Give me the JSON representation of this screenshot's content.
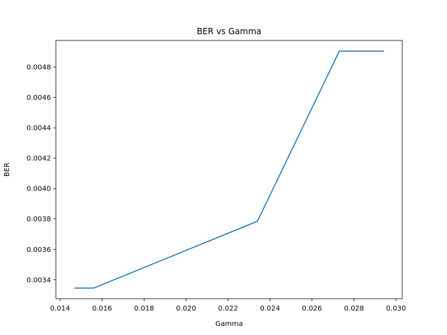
{
  "chart_data": {
    "type": "line",
    "title": "BER vs Gamma",
    "xlabel": "Gamma",
    "ylabel": "BER",
    "xlim": [
      0.0138,
      0.0303
    ],
    "ylim": [
      0.003275,
      0.004975
    ],
    "x_ticks": [
      "0.014",
      "0.016",
      "0.018",
      "0.020",
      "0.022",
      "0.024",
      "0.026",
      "0.028",
      "0.030"
    ],
    "y_ticks": [
      "0.0034",
      "0.0036",
      "0.0038",
      "0.0040",
      "0.0042",
      "0.0044",
      "0.0046",
      "0.0048"
    ],
    "grid": false,
    "series": [
      {
        "color": "#1f77b4",
        "x": [
          0.0147,
          0.0156,
          0.0234,
          0.0273,
          0.0294
        ],
        "y": [
          0.003345,
          0.003345,
          0.003785,
          0.004905,
          0.004905
        ]
      }
    ]
  }
}
